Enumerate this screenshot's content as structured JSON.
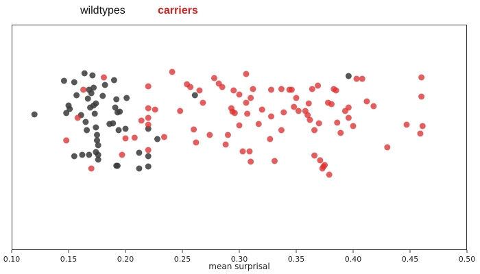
{
  "chart_data": {
    "type": "scatter",
    "title": "",
    "xlabel": "mean surprisal",
    "ylabel": "",
    "xlim": [
      0.1,
      0.5
    ],
    "x_ticks": [
      "0.10",
      "0.15",
      "0.20",
      "0.25",
      "0.30",
      "0.35",
      "0.40",
      "0.45",
      "0.50"
    ],
    "y_ticks": [],
    "grid": false,
    "legend_position": "top-left, above plot",
    "legend": [
      {
        "name": "wildtypes",
        "color": "#111111"
      },
      {
        "name": "carriers",
        "color": "#d62020"
      }
    ],
    "y_note": "vertical position is random jitter",
    "series": [
      {
        "name": "wildtypes",
        "color": "#3a3a3a",
        "points": [
          [
            0.12,
            167
          ],
          [
            0.146,
            118
          ],
          [
            0.148,
            165
          ],
          [
            0.15,
            154
          ],
          [
            0.151,
            159
          ],
          [
            0.155,
            120
          ],
          [
            0.157,
            139
          ],
          [
            0.161,
            168
          ],
          [
            0.164,
            107
          ],
          [
            0.165,
            178
          ],
          [
            0.166,
            190
          ],
          [
            0.167,
            144
          ],
          [
            0.168,
            131
          ],
          [
            0.169,
            157
          ],
          [
            0.17,
            136
          ],
          [
            0.171,
            110
          ],
          [
            0.172,
            128
          ],
          [
            0.172,
            154
          ],
          [
            0.173,
            166
          ],
          [
            0.174,
            151
          ],
          [
            0.174,
            186
          ],
          [
            0.175,
            197
          ],
          [
            0.175,
            205
          ],
          [
            0.176,
            212
          ],
          [
            0.176,
            226
          ],
          [
            0.176,
            233
          ],
          [
            0.174,
            222
          ],
          [
            0.168,
            226
          ],
          [
            0.162,
            226
          ],
          [
            0.155,
            228
          ],
          [
            0.18,
            140
          ],
          [
            0.182,
            124
          ],
          [
            0.186,
            181
          ],
          [
            0.189,
            180
          ],
          [
            0.19,
            117
          ],
          [
            0.191,
            157
          ],
          [
            0.192,
            145
          ],
          [
            0.193,
            164
          ],
          [
            0.194,
            190
          ],
          [
            0.195,
            163
          ],
          [
            0.192,
            242
          ],
          [
            0.193,
            242
          ],
          [
            0.201,
            143
          ],
          [
            0.2,
            188
          ],
          [
            0.212,
            223
          ],
          [
            0.212,
            246
          ],
          [
            0.22,
            228
          ],
          [
            0.22,
            243
          ],
          [
            0.22,
            188
          ],
          [
            0.228,
            203
          ],
          [
            0.261,
            139
          ],
          [
            0.396,
            111
          ]
        ]
      },
      {
        "name": "carriers",
        "color": "#e03030",
        "points": [
          [
            0.148,
            205
          ],
          [
            0.158,
            172
          ],
          [
            0.163,
            131
          ],
          [
            0.17,
            246
          ],
          [
            0.181,
            113
          ],
          [
            0.197,
            226
          ],
          [
            0.2,
            202
          ],
          [
            0.208,
            201
          ],
          [
            0.214,
            176
          ],
          [
            0.22,
            126
          ],
          [
            0.22,
            158
          ],
          [
            0.22,
            172
          ],
          [
            0.22,
            182
          ],
          [
            0.226,
            160
          ],
          [
            0.22,
            219
          ],
          [
            0.234,
            200
          ],
          [
            0.241,
            105
          ],
          [
            0.248,
            162
          ],
          [
            0.254,
            123
          ],
          [
            0.257,
            127
          ],
          [
            0.26,
            189
          ],
          [
            0.262,
            208
          ],
          [
            0.265,
            132
          ],
          [
            0.268,
            150
          ],
          [
            0.274,
            197
          ],
          [
            0.278,
            114
          ],
          [
            0.282,
            122
          ],
          [
            0.285,
            127
          ],
          [
            0.288,
            211
          ],
          [
            0.29,
            197
          ],
          [
            0.293,
            158
          ],
          [
            0.295,
            132
          ],
          [
            0.296,
            165
          ],
          [
            0.3,
            138
          ],
          [
            0.303,
            221
          ],
          [
            0.306,
            108
          ],
          [
            0.309,
            221
          ],
          [
            0.317,
            181
          ],
          [
            0.32,
            160
          ],
          [
            0.327,
            203
          ],
          [
            0.328,
            131
          ],
          [
            0.331,
            235
          ],
          [
            0.337,
            190
          ],
          [
            0.337,
            130
          ],
          [
            0.339,
            164
          ],
          [
            0.344,
            131
          ],
          [
            0.346,
            131
          ],
          [
            0.348,
            156
          ],
          [
            0.35,
            143
          ],
          [
            0.352,
            162
          ],
          [
            0.358,
            162
          ],
          [
            0.36,
            168
          ],
          [
            0.362,
            175
          ],
          [
            0.366,
            227
          ],
          [
            0.369,
            125
          ],
          [
            0.371,
            234
          ],
          [
            0.374,
            243
          ],
          [
            0.375,
            241
          ],
          [
            0.379,
            255
          ],
          [
            0.381,
            152
          ],
          [
            0.383,
            130
          ],
          [
            0.386,
            179
          ],
          [
            0.389,
            194
          ],
          [
            0.393,
            162
          ],
          [
            0.396,
            157
          ],
          [
            0.4,
            184
          ],
          [
            0.403,
            115
          ],
          [
            0.408,
            115
          ],
          [
            0.412,
            148
          ],
          [
            0.418,
            155
          ],
          [
            0.43,
            215
          ],
          [
            0.447,
            182
          ],
          [
            0.459,
            195
          ],
          [
            0.46,
            141
          ],
          [
            0.46,
            113
          ],
          [
            0.461,
            184
          ],
          [
            0.378,
            150
          ],
          [
            0.385,
            132
          ],
          [
            0.37,
            180
          ],
          [
            0.366,
            190
          ],
          [
            0.373,
            246
          ],
          [
            0.396,
            172
          ],
          [
            0.361,
            151
          ],
          [
            0.364,
            130
          ],
          [
            0.328,
            170
          ],
          [
            0.31,
            236
          ],
          [
            0.312,
            130
          ],
          [
            0.31,
            143
          ],
          [
            0.306,
            150
          ],
          [
            0.307,
            166
          ],
          [
            0.3,
            183
          ],
          [
            0.294,
            163
          ]
        ]
      }
    ]
  }
}
